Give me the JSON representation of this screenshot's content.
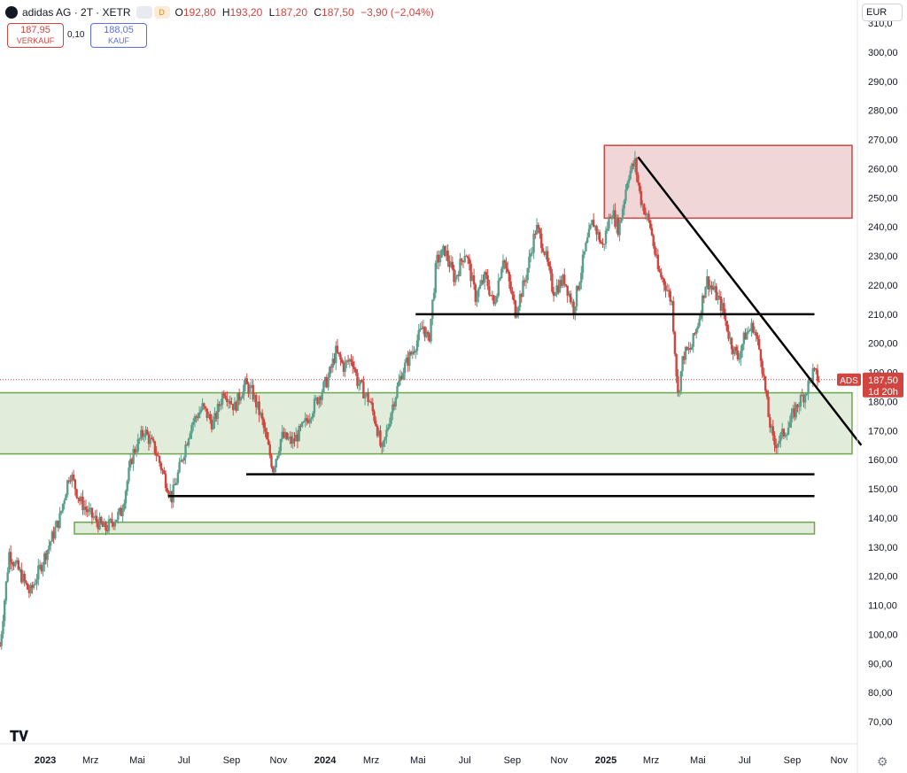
{
  "header": {
    "title": "adidas AG · 2T · XETR",
    "badge_1": "",
    "badge_2": "D",
    "open_label": "O",
    "open_value": "192,80",
    "high_label": "H",
    "high_value": "193,20",
    "low_label": "L",
    "low_value": "187,20",
    "close_label": "C",
    "close_value": "187,50",
    "change": "−3,90 (−2,04%)"
  },
  "trade": {
    "sell_price": "187,95",
    "sell_label": "VERKAUF",
    "spread": "0,10",
    "buy_price": "188,05",
    "buy_label": "KAUF"
  },
  "currency": "EUR",
  "chart_data": {
    "type": "candlestick",
    "title": "adidas AG · 2T · XETR",
    "ylim": [
      60,
      320
    ],
    "y_ticks": [
      "70,00",
      "80,00",
      "90,00",
      "100,00",
      "110,00",
      "120,00",
      "130,00",
      "140,00",
      "150,00",
      "160,00",
      "170,00",
      "180,00",
      "190,00",
      "200,00",
      "210,00",
      "220,00",
      "230,00",
      "240,00",
      "250,00",
      "260,00",
      "270,00",
      "280,00",
      "290,00",
      "300,00",
      "310,0"
    ],
    "x_ticks": [
      {
        "label": "2023",
        "date": "2023-01-01",
        "bold": true
      },
      {
        "label": "Mrz",
        "date": "2023-03-01"
      },
      {
        "label": "Mai",
        "date": "2023-05-01"
      },
      {
        "label": "Jul",
        "date": "2023-07-01"
      },
      {
        "label": "Sep",
        "date": "2023-09-01"
      },
      {
        "label": "Nov",
        "date": "2023-11-01"
      },
      {
        "label": "2024",
        "date": "2024-01-01",
        "bold": true
      },
      {
        "label": "Mrz",
        "date": "2024-03-01"
      },
      {
        "label": "Mai",
        "date": "2024-05-01"
      },
      {
        "label": "Jul",
        "date": "2024-07-01"
      },
      {
        "label": "Sep",
        "date": "2024-09-01"
      },
      {
        "label": "Nov",
        "date": "2024-11-01"
      },
      {
        "label": "2025",
        "date": "2025-01-01",
        "bold": true
      },
      {
        "label": "Mrz",
        "date": "2025-03-01"
      },
      {
        "label": "Mai",
        "date": "2025-05-01"
      },
      {
        "label": "Jul",
        "date": "2025-07-01"
      },
      {
        "label": "Sep",
        "date": "2025-09-01"
      },
      {
        "label": "Nov",
        "date": "2025-11-01"
      }
    ],
    "x_range": [
      "2022-11-03",
      "2025-11-25"
    ],
    "price_path": [
      [
        "2022-11-03",
        96
      ],
      [
        "2022-11-15",
        128
      ],
      [
        "2022-12-01",
        120
      ],
      [
        "2022-12-12",
        114
      ],
      [
        "2023-01-05",
        130
      ],
      [
        "2023-01-20",
        140
      ],
      [
        "2023-02-02",
        156
      ],
      [
        "2023-02-15",
        146
      ],
      [
        "2023-03-01",
        141
      ],
      [
        "2023-03-20",
        136
      ],
      [
        "2023-04-10",
        142
      ],
      [
        "2023-04-25",
        162
      ],
      [
        "2023-05-10",
        170
      ],
      [
        "2023-05-25",
        163
      ],
      [
        "2023-06-08",
        152
      ],
      [
        "2023-06-15",
        147
      ],
      [
        "2023-06-28",
        160
      ],
      [
        "2023-07-10",
        172
      ],
      [
        "2023-07-25",
        178
      ],
      [
        "2023-08-08",
        172
      ],
      [
        "2023-08-22",
        184
      ],
      [
        "2023-09-05",
        178
      ],
      [
        "2023-09-18",
        186
      ],
      [
        "2023-09-28",
        183
      ],
      [
        "2023-10-10",
        174
      ],
      [
        "2023-10-25",
        157
      ],
      [
        "2023-11-05",
        168
      ],
      [
        "2023-11-20",
        166
      ],
      [
        "2023-12-05",
        172
      ],
      [
        "2023-12-20",
        180
      ],
      [
        "2024-01-05",
        188
      ],
      [
        "2024-01-15",
        197
      ],
      [
        "2024-01-25",
        192
      ],
      [
        "2024-02-05",
        195
      ],
      [
        "2024-02-12",
        187
      ],
      [
        "2024-02-28",
        180
      ],
      [
        "2024-03-08",
        172
      ],
      [
        "2024-03-15",
        162
      ],
      [
        "2024-03-28",
        178
      ],
      [
        "2024-04-10",
        190
      ],
      [
        "2024-04-25",
        198
      ],
      [
        "2024-05-08",
        206
      ],
      [
        "2024-05-15",
        200
      ],
      [
        "2024-05-25",
        228
      ],
      [
        "2024-06-05",
        232
      ],
      [
        "2024-06-18",
        222
      ],
      [
        "2024-07-02",
        232
      ],
      [
        "2024-07-15",
        216
      ],
      [
        "2024-07-28",
        223
      ],
      [
        "2024-08-08",
        213
      ],
      [
        "2024-08-20",
        230
      ],
      [
        "2024-09-05",
        211
      ],
      [
        "2024-09-18",
        222
      ],
      [
        "2024-10-02",
        240
      ],
      [
        "2024-10-12",
        233
      ],
      [
        "2024-10-24",
        218
      ],
      [
        "2024-11-08",
        222
      ],
      [
        "2024-11-20",
        212
      ],
      [
        "2024-12-05",
        232
      ],
      [
        "2024-12-15",
        242
      ],
      [
        "2024-12-28",
        233
      ],
      [
        "2025-01-08",
        246
      ],
      [
        "2025-01-18",
        239
      ],
      [
        "2025-01-30",
        258
      ],
      [
        "2025-02-08",
        262
      ],
      [
        "2025-02-15",
        250
      ],
      [
        "2025-02-28",
        240
      ],
      [
        "2025-03-10",
        225
      ],
      [
        "2025-03-20",
        220
      ],
      [
        "2025-03-28",
        214
      ],
      [
        "2025-04-05",
        182
      ],
      [
        "2025-04-12",
        196
      ],
      [
        "2025-04-22",
        198
      ],
      [
        "2025-05-02",
        208
      ],
      [
        "2025-05-12",
        222
      ],
      [
        "2025-05-22",
        218
      ],
      [
        "2025-06-02",
        212
      ],
      [
        "2025-06-12",
        201
      ],
      [
        "2025-06-22",
        195
      ],
      [
        "2025-07-02",
        203
      ],
      [
        "2025-07-12",
        206
      ],
      [
        "2025-07-22",
        196
      ],
      [
        "2025-08-01",
        175
      ],
      [
        "2025-08-08",
        165
      ],
      [
        "2025-08-18",
        168
      ],
      [
        "2025-08-28",
        172
      ],
      [
        "2025-09-08",
        179
      ],
      [
        "2025-09-18",
        183
      ],
      [
        "2025-09-28",
        190
      ],
      [
        "2025-10-06",
        187.5
      ]
    ],
    "zones": [
      {
        "name": "resistance",
        "from": "2024-12-30",
        "to": "2025-11-18",
        "y_low": 243,
        "y_high": 268,
        "fill": "#f0d6d6",
        "stroke": "#d0453f"
      },
      {
        "name": "support",
        "from": "2022-11-01",
        "to": "2025-11-18",
        "y_low": 162,
        "y_high": 183,
        "fill": "#e2ecdb",
        "stroke": "#6aa84f"
      },
      {
        "name": "support-low",
        "from": "2023-02-08",
        "to": "2025-09-30",
        "y_low": 134.5,
        "y_high": 138.5,
        "fill": "#e2ecdb",
        "stroke": "#6aa84f"
      }
    ],
    "levels": [
      {
        "from": "2024-04-28",
        "to": "2025-09-30",
        "y": 210
      },
      {
        "from": "2023-09-20",
        "to": "2025-09-30",
        "y": 155
      },
      {
        "from": "2023-06-10",
        "to": "2025-09-30",
        "y": 147.5
      }
    ],
    "trendline": {
      "from": [
        "2025-02-12",
        264
      ],
      "to": [
        "2025-11-30",
        165
      ]
    },
    "last_price": {
      "symbol": "ADS",
      "value": "187,50",
      "countdown": "1d 20h",
      "y": 187.5
    }
  }
}
